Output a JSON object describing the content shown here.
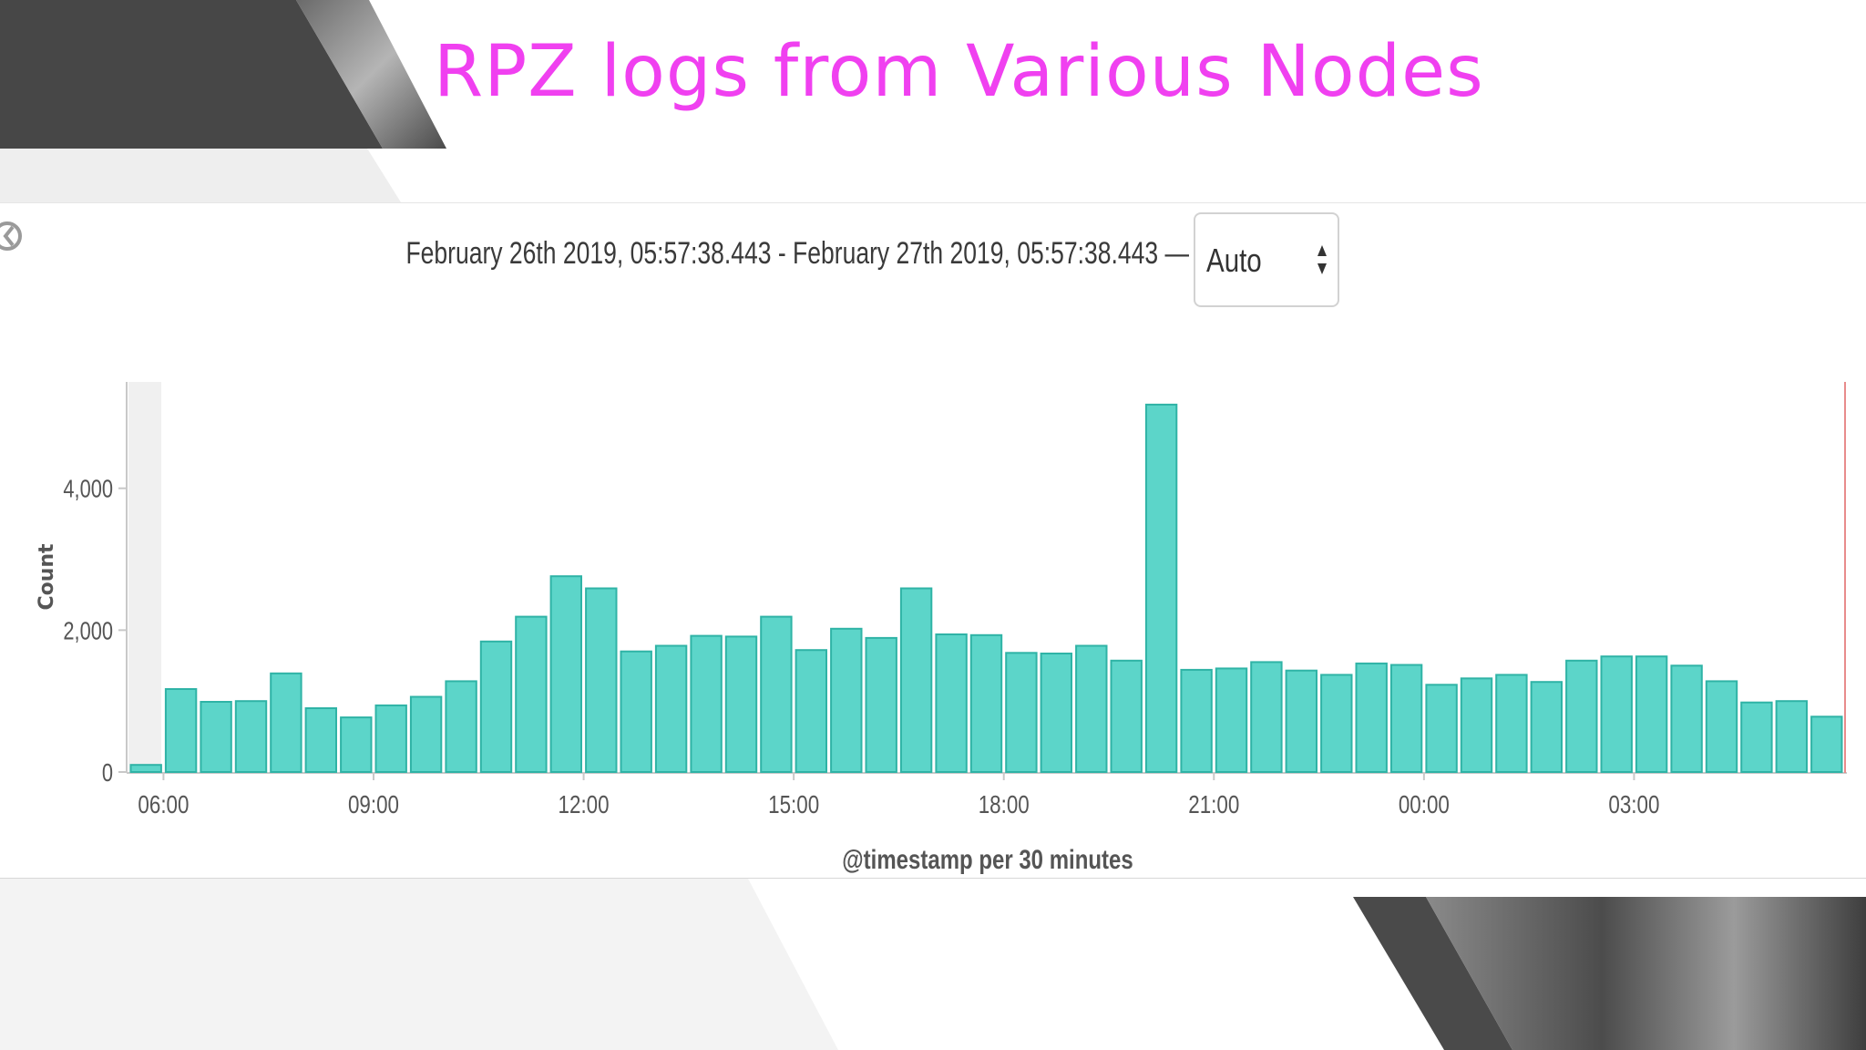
{
  "slide": {
    "title": "RPZ logs from Various Nodes"
  },
  "toolbar": {
    "time_range": "February 26th 2019, 05:57:38.443 - February 27th 2019, 05:57:38.443 —",
    "interval_value": "Auto"
  },
  "colors": {
    "title": "#f040f0",
    "bar_fill": "#5cd5c9",
    "bar_stroke": "#2fb3a6",
    "end_marker": "#e88b8b"
  },
  "chart_data": {
    "type": "bar",
    "title": "",
    "xlabel": "@timestamp per 30 minutes",
    "ylabel": "Count",
    "ylim": [
      0,
      5500
    ],
    "yticks": [
      0,
      2000,
      4000
    ],
    "ytick_labels": [
      "0",
      "2,000",
      "4,000"
    ],
    "x_start": "05:30",
    "bin_minutes": 30,
    "xtick_labels": [
      "06:00",
      "09:00",
      "12:00",
      "15:00",
      "18:00",
      "21:00",
      "00:00",
      "03:00"
    ],
    "values": [
      100,
      1170,
      990,
      1000,
      1390,
      900,
      770,
      940,
      1060,
      1280,
      1840,
      2190,
      2760,
      2590,
      1700,
      1780,
      1920,
      1910,
      2190,
      1720,
      2020,
      1890,
      2590,
      1940,
      1930,
      1680,
      1670,
      1780,
      1570,
      5180,
      1440,
      1460,
      1550,
      1430,
      1370,
      1530,
      1510,
      1230,
      1320,
      1370,
      1270,
      1570,
      1630,
      1630,
      1500,
      1280,
      980,
      1000,
      780
    ],
    "grid": false,
    "legend": "none"
  }
}
